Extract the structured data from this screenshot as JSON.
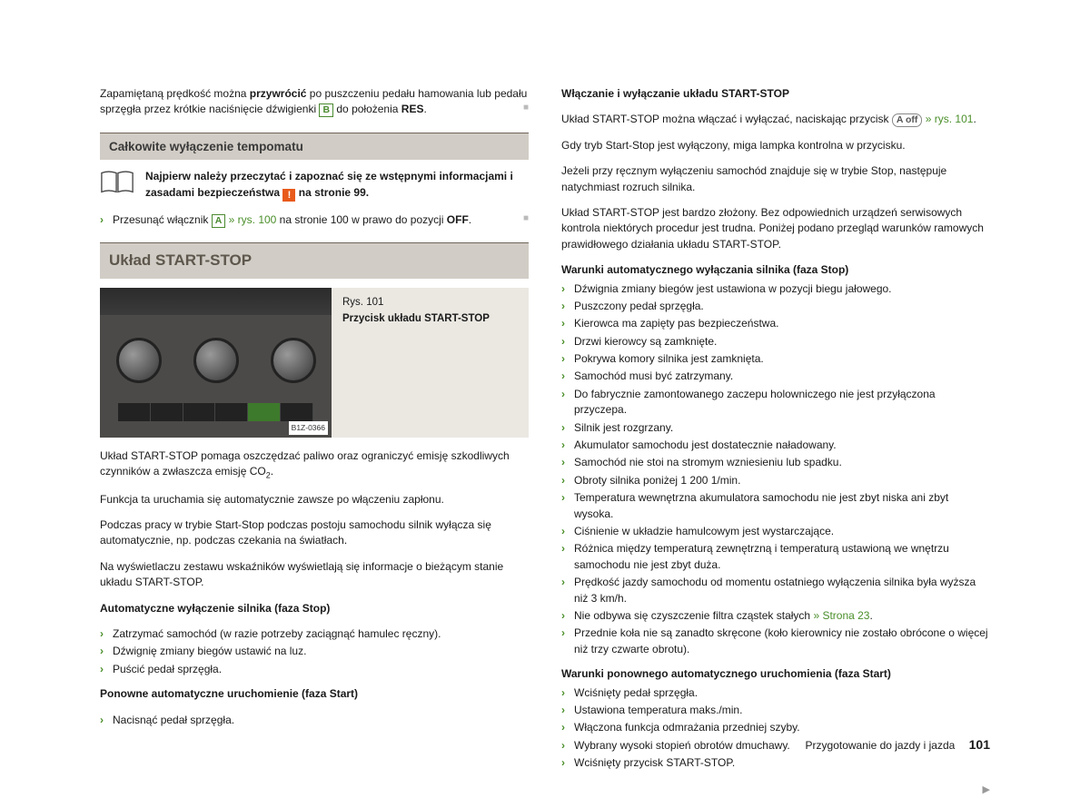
{
  "colors": {
    "link_green": "#4a8f2a",
    "heading_bg": "#d1ccc5",
    "heading_border": "#6e6559",
    "warn_bg": "#e85a1a",
    "figure_bg": "#ebe8e2",
    "text": "#1a1a1a"
  },
  "left": {
    "intro_p1a": "Zapamiętaną prędkość można ",
    "intro_p1b": "przywrócić",
    "intro_p1c": " po puszczeniu pedału hamowania lub pedału sprzęgła przez krótkie naciśnięcie dźwigienki ",
    "intro_badge1": "B",
    "intro_p1d": " do położenia ",
    "intro_p1e": "RES",
    "intro_p1f": ".",
    "h1": "Całkowite wyłączenie tempomatu",
    "read_first_a": "Najpierw należy przeczytać i zapoznać się ze wstępnymi informacjami i zasadami bezpieczeństwa ",
    "read_first_b": " na stronie 99.",
    "step1a": "Przesunąć włącznik ",
    "step1_badge": "A",
    "step1_ref": " » rys. 100",
    "step1b": " na stronie 100 w prawo do pozycji ",
    "step1c": "OFF",
    "step1d": ".",
    "h2": "Układ START-STOP",
    "fig": {
      "label": "B1Z-0366",
      "caption_title": "Rys. 101",
      "caption_body": "Przycisk układu START-STOP"
    },
    "p2a": "Układ START-STOP pomaga oszczędzać paliwo oraz ograniczyć emisję szkodliwych czynników a zwłaszcza emisję CO",
    "p2sub": "2",
    "p2b": ".",
    "p3": "Funkcja ta uruchamia się automatycznie zawsze po włączeniu zapłonu.",
    "p4": "Podczas pracy w trybie Start-Stop podczas postoju samochodu silnik wyłącza się automatycznie, np. podczas czekania na światłach.",
    "p5": "Na wyświetlaczu zestawu wskaźników wyświetlają się informacje o bieżącym stanie układu START-STOP.",
    "h_sub1": "Automatyczne wyłączenie silnika (faza Stop)",
    "list1": [
      "Zatrzymać samochód (w razie potrzeby zaciągnąć hamulec ręczny).",
      "Dźwignię zmiany biegów ustawić na luz.",
      "Puścić pedał sprzęgła."
    ],
    "h_sub2": "Ponowne automatyczne uruchomienie (faza Start)",
    "list2": [
      "Nacisnąć pedał sprzęgła."
    ]
  },
  "right": {
    "h_sub1": "Włączanie i wyłączanie układu START-STOP",
    "p1a": "Układ START-STOP można włączać i wyłączać, naciskając przycisk ",
    "p1_badge": "A off",
    "p1_ref": " » rys. 101",
    "p1b": ".",
    "p2": "Gdy tryb Start-Stop jest wyłączony, miga lampka kontrolna w przycisku.",
    "p3": "Jeżeli przy ręcznym wyłączeniu samochód znajduje się w trybie Stop, następuje natychmiast rozruch silnika.",
    "p4": "Układ START-STOP jest bardzo złożony. Bez odpowiednich urządzeń serwisowych kontrola niektórych procedur jest trudna. Poniżej podano przegląd warunków ramowych prawidłowego działania układu START-STOP.",
    "h_sub2": "Warunki automatycznego wyłączania silnika (faza Stop)",
    "list1": [
      "Dźwignia zmiany biegów jest ustawiona w pozycji biegu jałowego.",
      "Puszczony pedał sprzęgła.",
      "Kierowca ma zapięty pas bezpieczeństwa.",
      "Drzwi kierowcy są zamknięte.",
      "Pokrywa komory silnika jest zamknięta.",
      "Samochód musi być zatrzymany.",
      "Do fabrycznie zamontowanego zaczepu holowniczego nie jest przyłączona przyczepa.",
      "Silnik jest rozgrzany.",
      "Akumulator samochodu jest dostatecznie naładowany.",
      "Samochód nie stoi na stromym wzniesieniu lub spadku.",
      "Obroty silnika poniżej 1 200 1/min.",
      "Temperatura wewnętrzna akumulatora samochodu nie jest zbyt niska ani zbyt wysoka.",
      "Ciśnienie w układzie hamulcowym jest wystarczające.",
      "Różnica między temperaturą zewnętrzną i temperaturą ustawioną we wnętrzu samochodu nie jest zbyt duża.",
      "Prędkość jazdy samochodu od momentu ostatniego wyłączenia silnika była wyższa niż 3 km/h."
    ],
    "list1_ref_item_a": "Nie odbywa się czyszczenie filtra cząstek stałych ",
    "list1_ref_item_link": "» Strona 23",
    "list1_ref_item_b": ".",
    "list1_last": "Przednie koła nie są zanadto skręcone (koło kierownicy nie zostało obrócone o więcej niż trzy czwarte obrotu).",
    "h_sub3": "Warunki ponownego automatycznego uruchomienia (faza Start)",
    "list2": [
      "Wciśnięty pedał sprzęgła.",
      "Ustawiona temperatura maks./min.",
      "Włączona funkcja odmrażania przedniej szyby.",
      "Wybrany wysoki stopień obrotów dmuchawy.",
      "Wciśnięty przycisk START-STOP."
    ]
  },
  "footer": {
    "section": "Przygotowanie do jazdy i jazda",
    "page": "101"
  }
}
